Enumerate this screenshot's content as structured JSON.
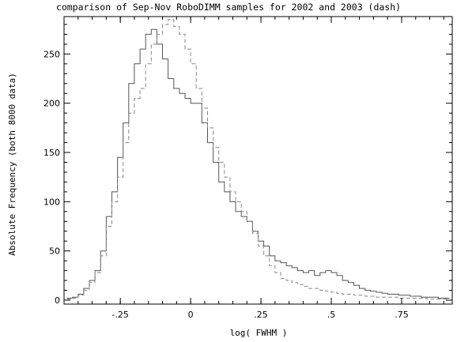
{
  "chart_data": {
    "type": "line",
    "title": "comparison of Sep-Nov RoboDIMM samples for 2002 and 2003 (dash)",
    "xlabel": "log( FWHM )",
    "ylabel": "Absolute Frequency (both 8000 data)",
    "xlim": [
      -0.45,
      0.93
    ],
    "ylim": [
      -4,
      288
    ],
    "x_ticks": [
      {
        "value": -0.25,
        "label": "-.25"
      },
      {
        "value": 0,
        "label": "0"
      },
      {
        "value": 0.25,
        "label": ".25"
      },
      {
        "value": 0.5,
        "label": ".5"
      },
      {
        "value": 0.75,
        "label": ".75"
      }
    ],
    "y_ticks": [
      {
        "value": 0,
        "label": "0"
      },
      {
        "value": 50,
        "label": "50"
      },
      {
        "value": 100,
        "label": "100"
      },
      {
        "value": 150,
        "label": "150"
      },
      {
        "value": 200,
        "label": "200"
      },
      {
        "value": 250,
        "label": "250"
      }
    ],
    "grid": false,
    "series": [
      {
        "name": "2002",
        "style": "solid",
        "color": "#555555",
        "x": [
          -0.44,
          -0.42,
          -0.4,
          -0.38,
          -0.36,
          -0.34,
          -0.32,
          -0.3,
          -0.28,
          -0.26,
          -0.24,
          -0.22,
          -0.2,
          -0.18,
          -0.16,
          -0.14,
          -0.12,
          -0.1,
          -0.08,
          -0.06,
          -0.04,
          -0.02,
          0.0,
          0.02,
          0.04,
          0.06,
          0.08,
          0.1,
          0.12,
          0.14,
          0.16,
          0.18,
          0.2,
          0.22,
          0.24,
          0.26,
          0.28,
          0.3,
          0.32,
          0.34,
          0.36,
          0.38,
          0.4,
          0.42,
          0.44,
          0.46,
          0.48,
          0.5,
          0.52,
          0.54,
          0.56,
          0.58,
          0.6,
          0.62,
          0.64,
          0.66,
          0.68,
          0.7,
          0.72,
          0.74,
          0.76,
          0.78,
          0.8,
          0.82,
          0.84,
          0.86,
          0.88,
          0.9
        ],
        "y": [
          2,
          3,
          6,
          12,
          20,
          30,
          50,
          85,
          110,
          145,
          180,
          220,
          240,
          255,
          270,
          275,
          260,
          245,
          225,
          215,
          210,
          205,
          200,
          200,
          180,
          160,
          140,
          120,
          110,
          100,
          90,
          85,
          80,
          70,
          60,
          55,
          45,
          40,
          38,
          35,
          33,
          30,
          28,
          30,
          25,
          28,
          30,
          28,
          25,
          20,
          18,
          15,
          12,
          10,
          9,
          8,
          7,
          6,
          6,
          5,
          5,
          4,
          4,
          3,
          3,
          3,
          2,
          2
        ]
      },
      {
        "name": "2003",
        "style": "dash",
        "color": "#888888",
        "x": [
          -0.44,
          -0.42,
          -0.4,
          -0.38,
          -0.36,
          -0.34,
          -0.32,
          -0.3,
          -0.28,
          -0.26,
          -0.24,
          -0.22,
          -0.2,
          -0.18,
          -0.16,
          -0.14,
          -0.12,
          -0.1,
          -0.08,
          -0.06,
          -0.04,
          -0.02,
          0.0,
          0.02,
          0.04,
          0.06,
          0.08,
          0.1,
          0.12,
          0.14,
          0.16,
          0.18,
          0.2,
          0.22,
          0.24,
          0.26,
          0.28,
          0.3,
          0.32,
          0.34,
          0.36,
          0.38,
          0.4,
          0.42,
          0.44,
          0.46,
          0.48,
          0.5,
          0.52,
          0.54,
          0.56,
          0.58,
          0.6,
          0.62,
          0.64,
          0.66,
          0.68,
          0.7,
          0.72,
          0.74,
          0.76,
          0.78,
          0.8,
          0.82,
          0.84,
          0.86,
          0.88,
          0.9
        ],
        "y": [
          1,
          2,
          5,
          10,
          18,
          28,
          45,
          75,
          100,
          125,
          160,
          190,
          205,
          215,
          240,
          260,
          270,
          280,
          285,
          278,
          270,
          255,
          240,
          215,
          195,
          175,
          155,
          140,
          125,
          110,
          100,
          90,
          80,
          68,
          55,
          45,
          35,
          28,
          22,
          20,
          18,
          16,
          14,
          12,
          12,
          10,
          9,
          8,
          7,
          6,
          6,
          5,
          5,
          4,
          4,
          3,
          3,
          3,
          3,
          2,
          2,
          2,
          2,
          2,
          1,
          1,
          1,
          1
        ]
      }
    ]
  }
}
